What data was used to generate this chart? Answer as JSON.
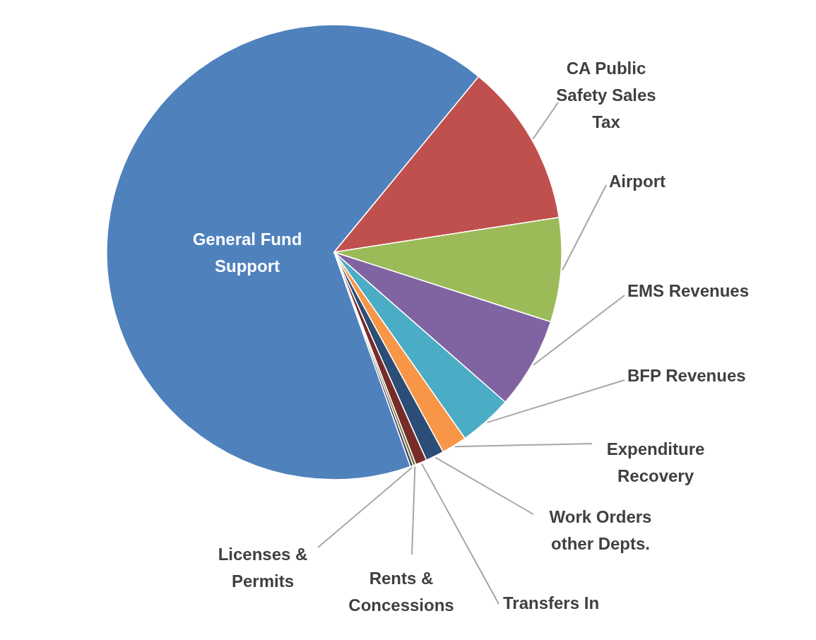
{
  "chart_data": {
    "type": "pie",
    "categories": [
      "General Fund Support",
      "CA Public Safety Sales Tax",
      "Airport",
      "EMS Revenues",
      "BFP Revenues",
      "Expenditure Recovery",
      "Work Orders other Depts.",
      "Transfers In",
      "Rents & Concessions",
      "Licenses & Permits"
    ],
    "values": [
      66.4,
      11.6,
      7.4,
      6.5,
      3.8,
      1.8,
      1.3,
      0.8,
      0.2,
      0.2
    ],
    "colors": [
      "#4f81bd",
      "#c0504d",
      "#9bbb59",
      "#8064a2",
      "#4bacc6",
      "#f79646",
      "#2c4d75",
      "#772c2a",
      "#5f7530",
      "#4d3b62"
    ]
  }
}
